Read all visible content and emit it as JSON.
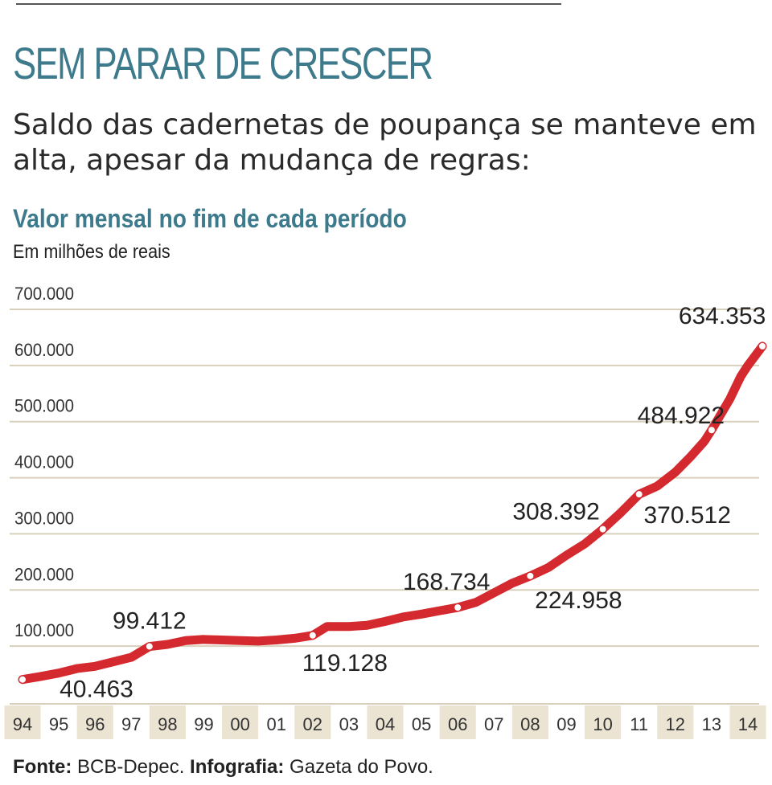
{
  "header": {
    "title": "SEM PARAR DE CRESCER",
    "subtitle": "Saldo das cadernetas de poupança se manteve em alta, apesar da mudança de regras:"
  },
  "panel": {
    "title": "Valor mensal no fim de cada período",
    "units": "Em milhões de reais"
  },
  "footer": {
    "source_label": "Fonte:",
    "source_value": "BCB-Depec.",
    "credit_label": "Infografia:",
    "credit_value": "Gazeta do Povo."
  },
  "colors": {
    "accent": "#3d7a8c",
    "line": "#d42a2f",
    "grid": "#d8d0bc",
    "band": "#ebe4d2"
  },
  "chart_data": {
    "type": "line",
    "title": "Valor mensal no fim de cada período",
    "ylabel": "Em milhões de reais",
    "ylim": [
      0,
      700000
    ],
    "yticks": [
      100000,
      200000,
      300000,
      400000,
      500000,
      600000,
      700000
    ],
    "ytick_labels": [
      "100.000",
      "200.000",
      "300.000",
      "400.000",
      "500.000",
      "600.000",
      "700.000"
    ],
    "x_categories": [
      "94",
      "95",
      "96",
      "97",
      "98",
      "99",
      "00",
      "01",
      "02",
      "03",
      "04",
      "05",
      "06",
      "07",
      "08",
      "09",
      "10",
      "11",
      "12",
      "13",
      "14"
    ],
    "grid": true,
    "series": [
      {
        "values": [
          [
            1994.0,
            40463
          ],
          [
            1994.5,
            46000
          ],
          [
            1995.0,
            52000
          ],
          [
            1995.5,
            60000
          ],
          [
            1996.0,
            64000
          ],
          [
            1996.5,
            72000
          ],
          [
            1997.0,
            80000
          ],
          [
            1997.5,
            99412
          ],
          [
            1998.0,
            103000
          ],
          [
            1998.5,
            110000
          ],
          [
            1999.0,
            112000
          ],
          [
            1999.5,
            111000
          ],
          [
            2000.0,
            110000
          ],
          [
            2000.5,
            109000
          ],
          [
            2001.0,
            111000
          ],
          [
            2001.5,
            114000
          ],
          [
            2002.0,
            119128
          ],
          [
            2002.4,
            135000
          ],
          [
            2003.0,
            135000
          ],
          [
            2003.5,
            137000
          ],
          [
            2004.0,
            144000
          ],
          [
            2004.5,
            152000
          ],
          [
            2005.0,
            157000
          ],
          [
            2005.5,
            163000
          ],
          [
            2006.0,
            168734
          ],
          [
            2006.5,
            178000
          ],
          [
            2007.0,
            195000
          ],
          [
            2007.5,
            212000
          ],
          [
            2008.0,
            224958
          ],
          [
            2008.5,
            240000
          ],
          [
            2009.0,
            262000
          ],
          [
            2009.5,
            282000
          ],
          [
            2010.0,
            308392
          ],
          [
            2010.5,
            338000
          ],
          [
            2011.0,
            370512
          ],
          [
            2011.5,
            385000
          ],
          [
            2012.0,
            410000
          ],
          [
            2012.4,
            436000
          ],
          [
            2012.8,
            465000
          ],
          [
            2013.0,
            484922
          ],
          [
            2013.5,
            540000
          ],
          [
            2013.8,
            580000
          ],
          [
            2014.0,
            600000
          ],
          [
            2014.4,
            634353
          ]
        ]
      }
    ],
    "labels": [
      {
        "x": 1994.0,
        "y": 40463,
        "text": "40.463"
      },
      {
        "x": 1997.5,
        "y": 99412,
        "text": "99.412"
      },
      {
        "x": 2002.0,
        "y": 119128,
        "text": "119.128"
      },
      {
        "x": 2006.0,
        "y": 168734,
        "text": "168.734"
      },
      {
        "x": 2008.0,
        "y": 224958,
        "text": "224.958"
      },
      {
        "x": 2010.0,
        "y": 308392,
        "text": "308.392"
      },
      {
        "x": 2011.0,
        "y": 370512,
        "text": "370.512"
      },
      {
        "x": 2013.0,
        "y": 484922,
        "text": "484.922"
      },
      {
        "x": 2014.4,
        "y": 634353,
        "text": "634.353"
      }
    ]
  }
}
